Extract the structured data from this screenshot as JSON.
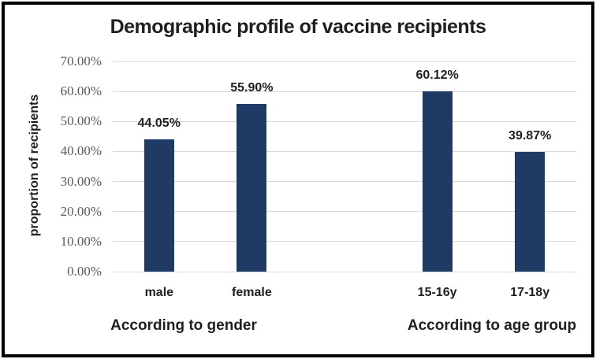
{
  "chart_data": {
    "type": "bar",
    "title": "Demographic profile of vaccine recipients",
    "ylabel": "proportion of recipients",
    "xlabel": "",
    "ylim": [
      0,
      70
    ],
    "grid": true,
    "legend": false,
    "bar_color": "#1f3a64",
    "gridline_color": "#d9d9d9",
    "tick_label_color": "#595959",
    "text_color": "#1f1f1f",
    "y_ticks": [
      {
        "value": 0,
        "label": "0.00%"
      },
      {
        "value": 10,
        "label": "10.00%"
      },
      {
        "value": 20,
        "label": "20.00%"
      },
      {
        "value": 30,
        "label": "30.00%"
      },
      {
        "value": 40,
        "label": "40.00%"
      },
      {
        "value": 50,
        "label": "50.00%"
      },
      {
        "value": 60,
        "label": "60.00%"
      },
      {
        "value": 70,
        "label": "70.00%"
      }
    ],
    "groups": [
      {
        "label": "According to gender",
        "bars": [
          {
            "category": "male",
            "value": 44.05,
            "value_label": "44.05%"
          },
          {
            "category": "female",
            "value": 55.9,
            "value_label": "55.90%"
          }
        ]
      },
      {
        "label": "According to age group",
        "bars": [
          {
            "category": "15-16y",
            "value": 60.12,
            "value_label": "60.12%"
          },
          {
            "category": "17-18y",
            "value": 39.87,
            "value_label": "39.87%"
          }
        ]
      }
    ]
  }
}
